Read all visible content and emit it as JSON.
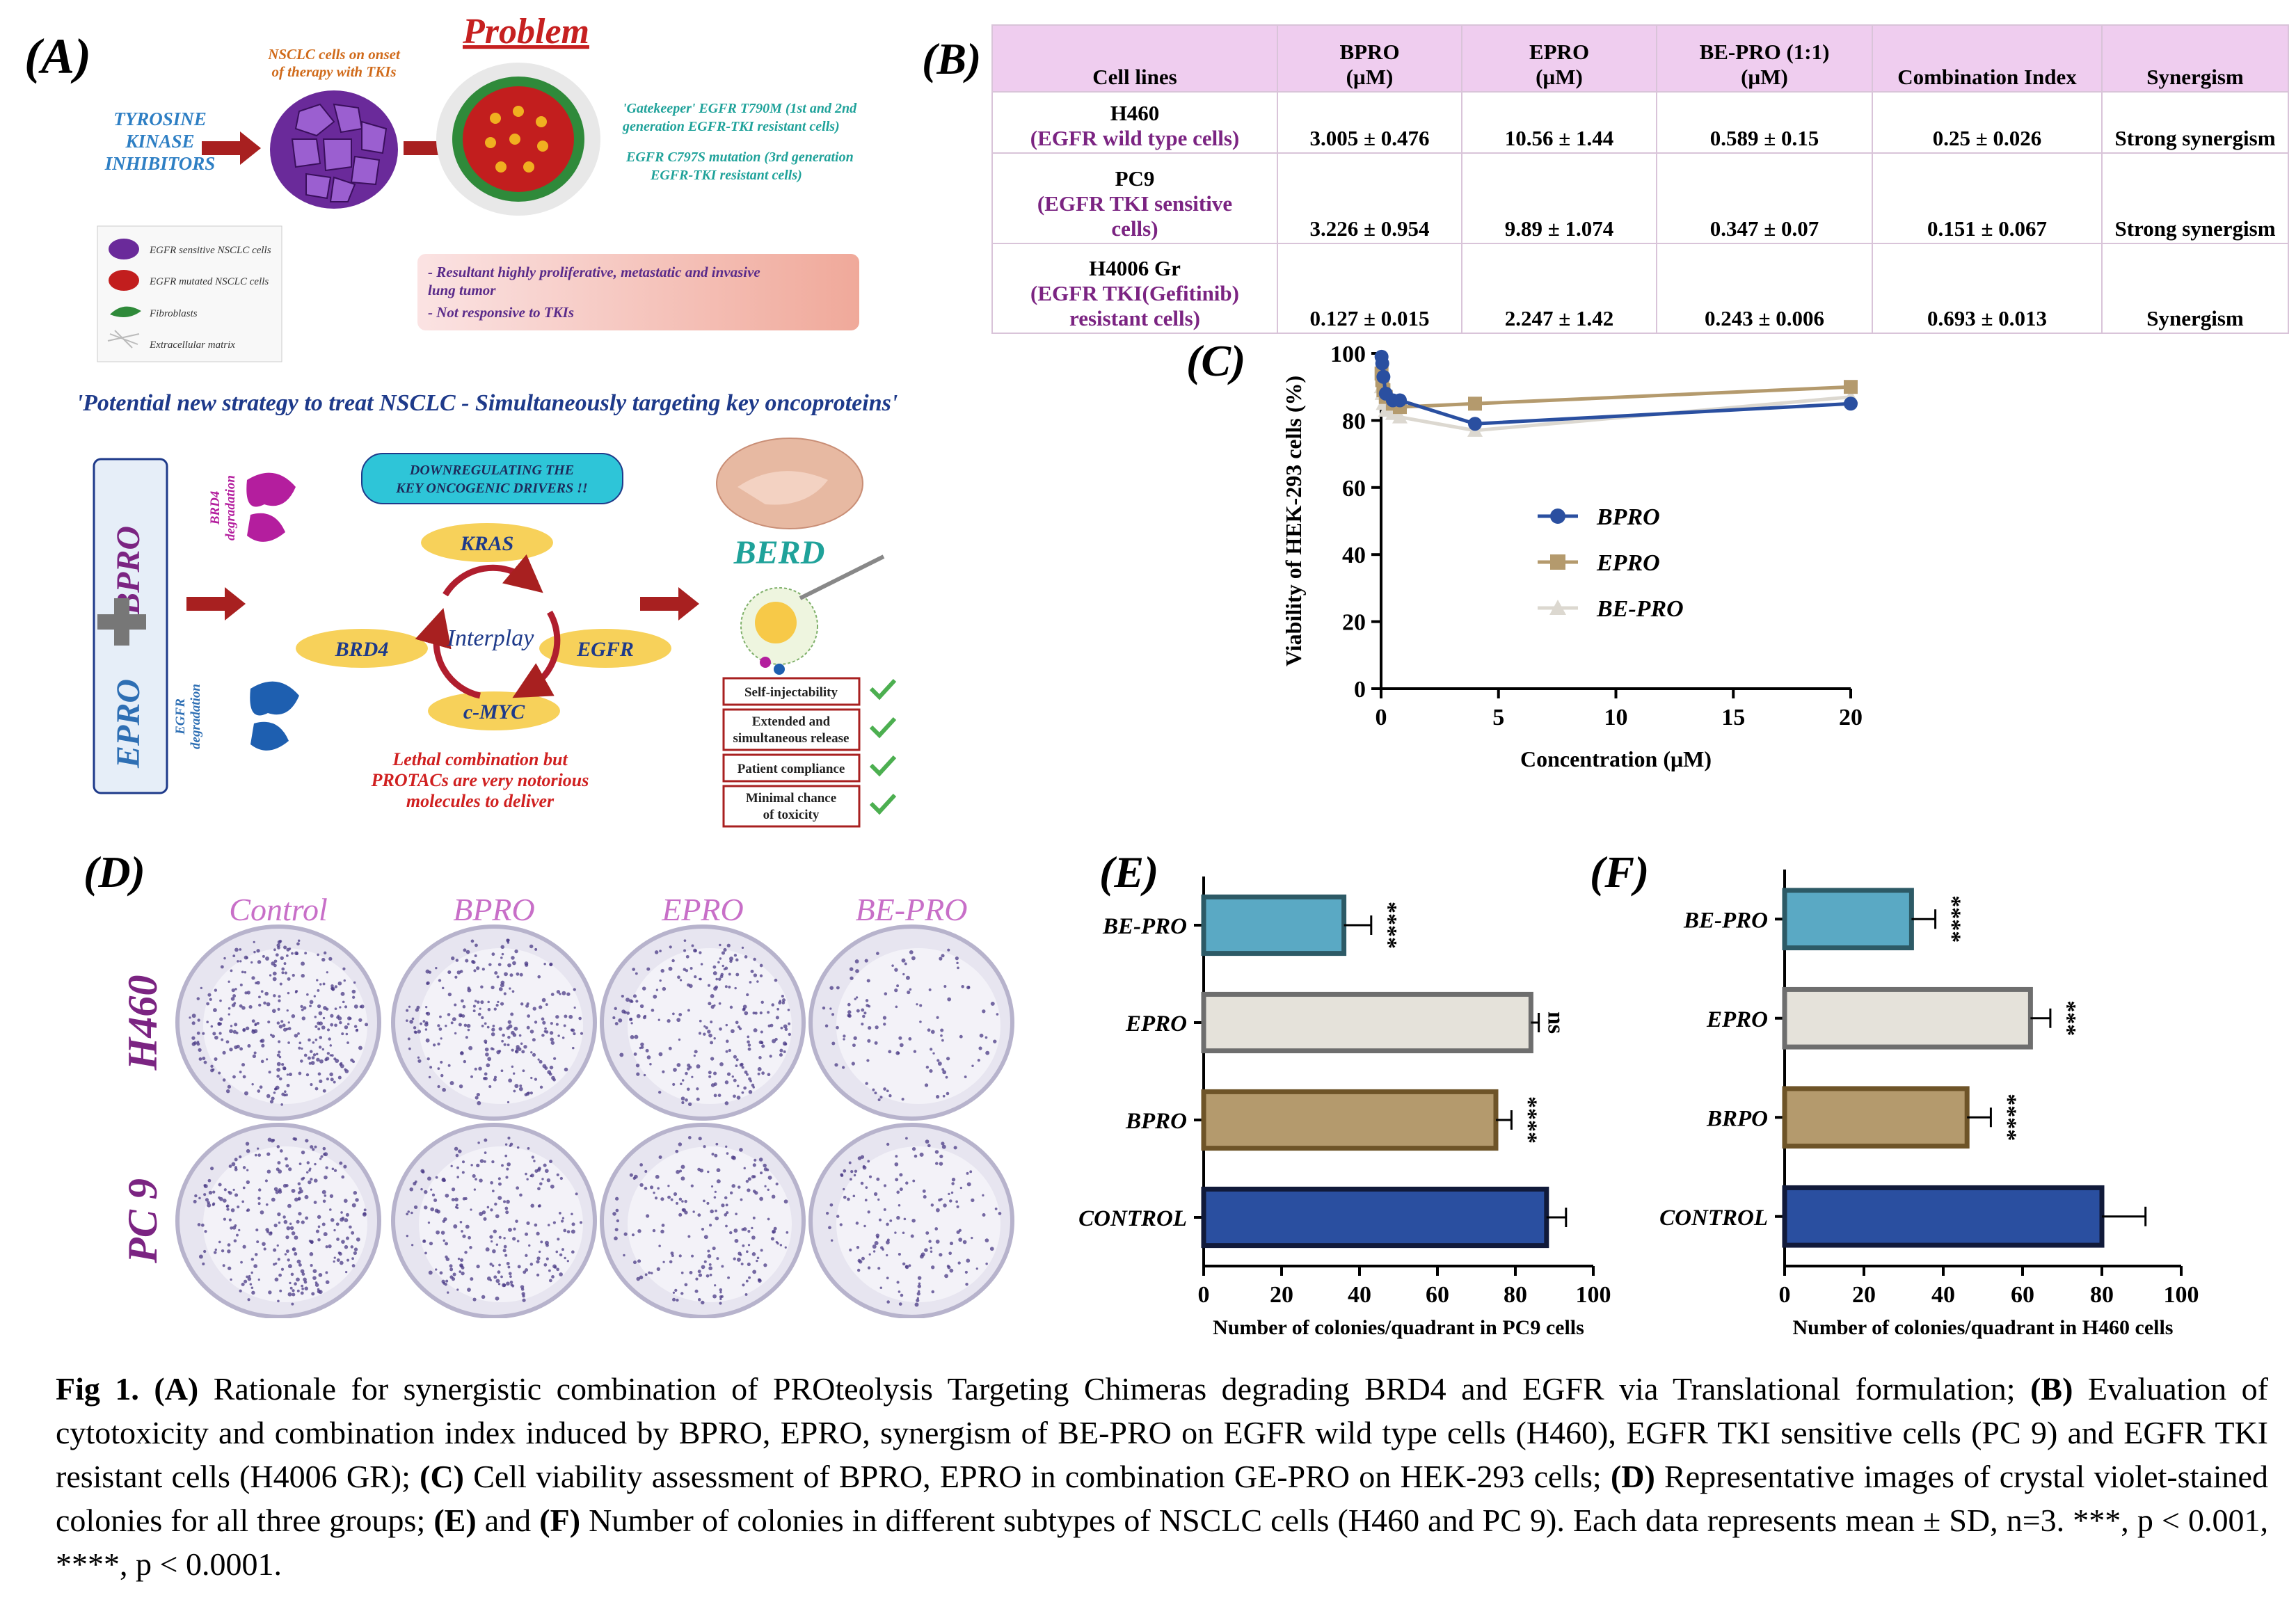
{
  "panelA": {
    "label": "(A)",
    "problem_title": "Problem",
    "tki_lines": [
      "TYROSINE",
      "KINASE",
      "INHIBITORS"
    ],
    "nsclc_onset": [
      "NSCLC cells on onset",
      "of therapy with TKIs"
    ],
    "gatekeeper": [
      "'Gatekeeper' EGFR T790M (1st and 2nd",
      "generation EGFR-TKI resistant cells)"
    ],
    "c797s": [
      "EGFR C797S mutation (3rd generation",
      "EGFR-TKI resistant cells)"
    ],
    "legend": [
      "EGFR sensitive NSCLC cells",
      "EGFR mutated NSCLC cells",
      "Fibroblasts",
      "Extracellular matrix"
    ],
    "result_box": [
      "- Resultant highly proliferative, metastatic and invasive",
      "lung tumor",
      "- Not responsive to TKIs"
    ],
    "strategy": "'Potential new strategy to treat NSCLC - Simultaneously targeting key oncoproteins'",
    "bpro": "BPRO",
    "epro": "EPRO",
    "brd4_deg": [
      "BRD4",
      "degradation"
    ],
    "egfr_deg": [
      "EGFR",
      "degradation"
    ],
    "downregulating": [
      "DOWNREGULATING THE",
      "KEY ONCOGENIC DRIVERS !!"
    ],
    "kras": "KRAS",
    "brd4": "BRD4",
    "egfr": "EGFR",
    "cmyc": "c-MYC",
    "interplay": "Interplay",
    "lethal": [
      "Lethal combination but",
      "PROTACs are very  notorious",
      "molecules to deliver"
    ],
    "berd": "BERD",
    "checks": [
      [
        "Self-injectability"
      ],
      [
        "Extended and",
        "simultaneous release"
      ],
      [
        "Patient compliance"
      ],
      [
        "Minimal chance",
        "of toxicity"
      ]
    ]
  },
  "panelB": {
    "label": "(B)",
    "headers": [
      [
        "Cell lines"
      ],
      [
        "BPRO",
        "(µM)"
      ],
      [
        "EPRO",
        "(µM)"
      ],
      [
        "BE-PRO (1:1)",
        "(µM)"
      ],
      [
        "Combination Index"
      ],
      [
        "Synergism"
      ]
    ],
    "rows": [
      {
        "name": "H460",
        "sub": [
          "(EGFR wild type cells)"
        ],
        "bpro": "3.005 ± 0.476",
        "epro": "10.56 ± 1.44",
        "bepro": "0.589 ± 0.15",
        "ci": "0.25 ± 0.026",
        "syn": "Strong synergism"
      },
      {
        "name": "PC9",
        "sub": [
          "(EGFR TKI sensitive",
          "cells)"
        ],
        "bpro": "3.226 ± 0.954",
        "epro": "9.89 ± 1.074",
        "bepro": "0.347 ± 0.07",
        "ci": "0.151 ± 0.067",
        "syn": "Strong synergism"
      },
      {
        "name": "H4006 Gr",
        "sub": [
          "(EGFR TKI(Gefitinib)",
          "resistant cells)"
        ],
        "bpro": "0.127 ± 0.015",
        "epro": "2.247 ± 1.42",
        "bepro": "0.243 ± 0.006",
        "ci": "0.693 ± 0.013",
        "syn": "Synergism"
      }
    ]
  },
  "panelD": {
    "label": "(D)",
    "cols": [
      "Control",
      "BPRO",
      "EPRO",
      "BE-PRO"
    ],
    "rows": [
      "H460",
      "PC 9"
    ]
  },
  "colors": {
    "bpro": "#2a4fa0",
    "epro": "#b49a6d",
    "bepro": "#dcd8d0",
    "purple": "#7b2482",
    "pink": "#c86fc8",
    "teal": "#5aa9c4"
  },
  "chart_data": [
    {
      "type": "line",
      "panel": "(C)",
      "xlabel": "Concentration (μM)",
      "ylabel": "Viability of HEK-293 cells (%)",
      "xlim": [
        0,
        20
      ],
      "ylim": [
        0,
        100
      ],
      "xticks": [
        "0",
        "5",
        "10",
        "15",
        "20"
      ],
      "yticks": [
        "0",
        "20",
        "40",
        "60",
        "80",
        "100"
      ],
      "legend_position": "center",
      "series": [
        {
          "name": "BPRO",
          "x": [
            0.02,
            0.05,
            0.1,
            0.2,
            0.5,
            0.8,
            4,
            20
          ],
          "y": [
            99,
            97,
            93,
            88,
            86,
            86,
            79,
            85
          ]
        },
        {
          "name": "EPRO",
          "x": [
            0.02,
            0.05,
            0.1,
            0.2,
            0.5,
            0.8,
            4,
            20
          ],
          "y": [
            94,
            92,
            89,
            87,
            85,
            84,
            85,
            90
          ]
        },
        {
          "name": "BE-PRO",
          "x": [
            0.02,
            0.05,
            0.1,
            0.2,
            0.5,
            0.8,
            4,
            20
          ],
          "y": [
            90,
            88,
            85,
            83,
            82,
            81,
            77,
            87
          ]
        }
      ]
    },
    {
      "type": "bar",
      "panel": "(E)",
      "orientation": "horizontal",
      "categories": [
        "BE-PRO",
        "EPRO",
        "BPRO",
        "CONTROL"
      ],
      "values": [
        36,
        84,
        75,
        88
      ],
      "errors": [
        7,
        2,
        4,
        5
      ],
      "sig": [
        "****",
        "ns",
        "****",
        ""
      ],
      "xlabel": "Number of colonies/quadrant in PC9 cells",
      "xlim": [
        0,
        100
      ],
      "xticks": [
        "0",
        "20",
        "40",
        "60",
        "80",
        "100"
      ]
    },
    {
      "type": "bar",
      "panel": "(F)",
      "orientation": "horizontal",
      "categories": [
        "BE-PRO",
        "EPRO",
        "BRPO",
        "CONTROL"
      ],
      "values": [
        32,
        62,
        46,
        80
      ],
      "errors": [
        6,
        5,
        6,
        11
      ],
      "sig": [
        "****",
        "***",
        "****",
        ""
      ],
      "xlabel": "Number of colonies/quadrant in H460 cells",
      "xlim": [
        0,
        100
      ],
      "xticks": [
        "0",
        "20",
        "40",
        "60",
        "80",
        "100"
      ]
    }
  ],
  "caption": {
    "fig": "Fig 1.",
    "parts": [
      {
        "b": "(A)",
        "t": " Rationale for synergistic combination of PROteolysis Targeting Chimeras degrading BRD4 and EGFR via Translational formulation; "
      },
      {
        "b": "(B)",
        "t": " Evaluation of cytotoxicity and combination index induced by BPRO, EPRO, synergism of  BE-PRO on EGFR wild type cells (H460), EGFR TKI sensitive cells (PC 9) and EGFR TKI resistant cells (H4006 GR); "
      },
      {
        "b": "(C)",
        "t": " Cell viability assessment of BPRO, EPRO in combination GE-PRO on HEK-293 cells; "
      },
      {
        "b": "(D)",
        "t": " Representative images of crystal violet-stained colonies for all three groups; "
      },
      {
        "b": "(E)",
        "t": " and "
      },
      {
        "b": "(F)",
        "t": " Number of colonies in different subtypes of NSCLC cells (H460 and PC 9). Each data represents mean ± SD, n=3. ***, p < 0.001, ****, p < 0.0001."
      }
    ]
  }
}
